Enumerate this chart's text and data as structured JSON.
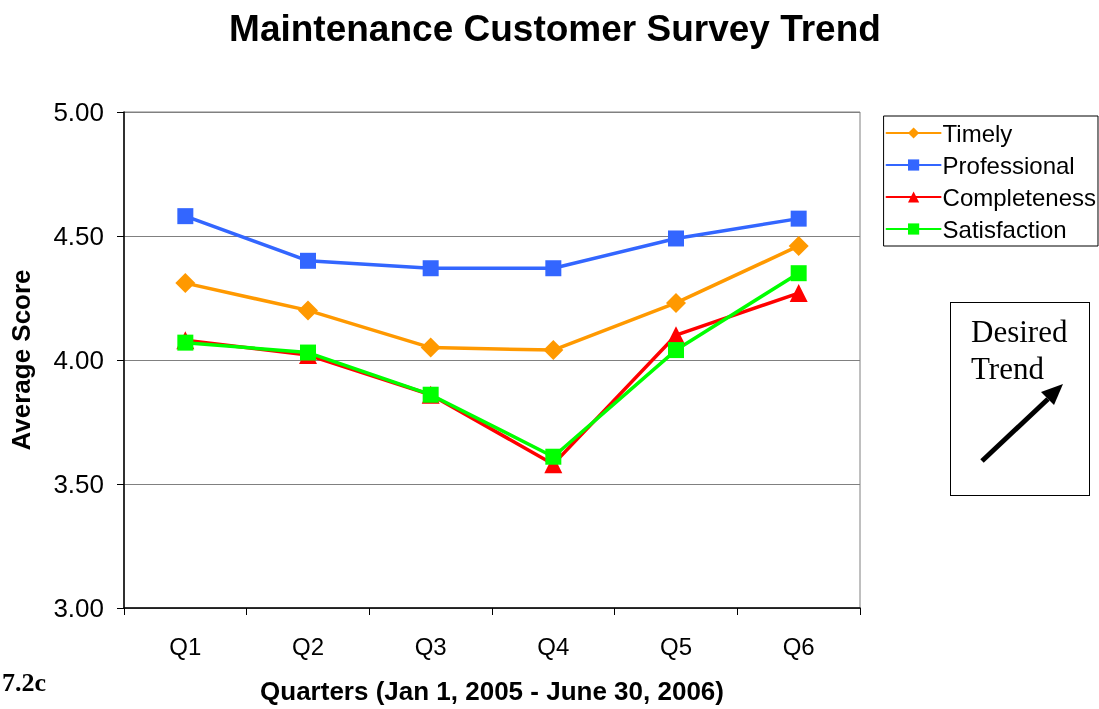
{
  "chart_data": {
    "type": "line",
    "title": "Maintenance Customer Survey Trend",
    "xlabel": "Quarters (Jan 1, 2005 - June 30, 2006)",
    "ylabel": "Average Score",
    "categories": [
      "Q1",
      "Q2",
      "Q3",
      "Q4",
      "Q5",
      "Q6"
    ],
    "series": [
      {
        "name": "Timely",
        "color": "#ff9900",
        "marker": "diamond",
        "values": [
          4.31,
          4.2,
          4.05,
          4.04,
          4.23,
          4.46
        ]
      },
      {
        "name": "Professional",
        "color": "#3366ff",
        "marker": "square",
        "values": [
          4.58,
          4.4,
          4.37,
          4.37,
          4.49,
          4.57
        ]
      },
      {
        "name": "Completeness",
        "color": "#ff0000",
        "marker": "triangle",
        "values": [
          4.08,
          4.02,
          3.86,
          3.58,
          4.1,
          4.27
        ]
      },
      {
        "name": "Satisfaction",
        "color": "#00ff00",
        "marker": "square",
        "values": [
          4.07,
          4.03,
          3.86,
          3.61,
          4.04,
          4.35
        ]
      }
    ],
    "ylim": [
      3,
      5
    ],
    "yticks": [
      {
        "value": 3,
        "label": "3.00"
      },
      {
        "value": 3.5,
        "label": "3.50"
      },
      {
        "value": 4,
        "label": "4.00"
      },
      {
        "value": 4.5,
        "label": "4.50"
      },
      {
        "value": 5,
        "label": "5.00"
      }
    ],
    "grid": "y",
    "legend": "right",
    "line_style": "solid",
    "annotations": [
      "Desired Trend",
      "7.2c"
    ]
  }
}
